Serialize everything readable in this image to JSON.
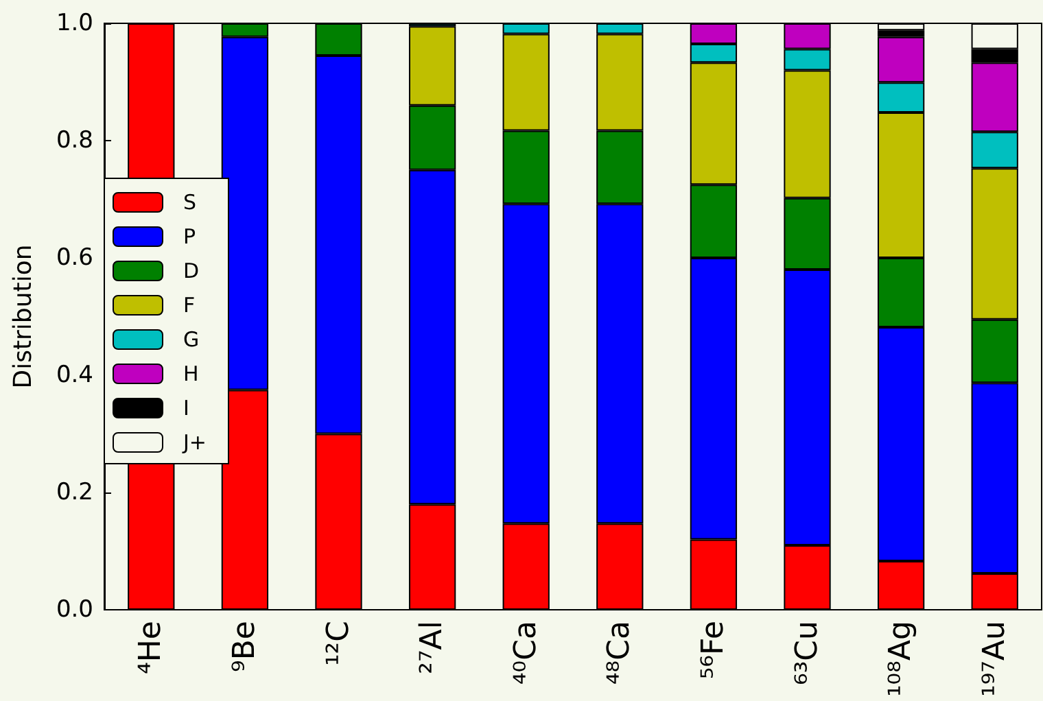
{
  "chart_data": {
    "type": "bar",
    "stacked": true,
    "ylabel": "Distribution",
    "categories": [
      "⁴He",
      "⁹Be",
      "¹²C",
      "²⁷Al",
      "⁴⁰Ca",
      "⁴⁸Ca",
      "⁵⁶Fe",
      "⁶³Cu",
      "¹⁰⁸Ag",
      "¹⁹⁷Au"
    ],
    "series": [
      {
        "name": "S",
        "color": "#ff0000",
        "values": [
          1.0,
          0.375,
          0.3,
          0.18,
          0.147,
          0.147,
          0.12,
          0.11,
          0.083,
          0.062
        ]
      },
      {
        "name": "P",
        "color": "#0000ff",
        "values": [
          0,
          0.602,
          0.645,
          0.57,
          0.545,
          0.545,
          0.48,
          0.47,
          0.399,
          0.325
        ]
      },
      {
        "name": "D",
        "color": "#008000",
        "values": [
          0,
          0.023,
          0.055,
          0.11,
          0.125,
          0.125,
          0.125,
          0.122,
          0.118,
          0.108
        ]
      },
      {
        "name": "F",
        "color": "#bfbf00",
        "values": [
          0,
          0,
          0,
          0.135,
          0.165,
          0.165,
          0.208,
          0.218,
          0.248,
          0.258
        ]
      },
      {
        "name": "G",
        "color": "#00bfbf",
        "values": [
          0,
          0,
          0,
          0.005,
          0.018,
          0.018,
          0.032,
          0.036,
          0.051,
          0.062
        ]
      },
      {
        "name": "H",
        "color": "#bf00bf",
        "values": [
          0,
          0,
          0,
          0,
          0,
          0,
          0.035,
          0.044,
          0.078,
          0.118
        ]
      },
      {
        "name": "I",
        "color": "#000000",
        "values": [
          0,
          0,
          0,
          0,
          0,
          0,
          0,
          0,
          0.011,
          0.023
        ]
      },
      {
        "name": "J+",
        "color": "#f5f8ec",
        "values": [
          0,
          0,
          0,
          0,
          0,
          0,
          0,
          0,
          0.012,
          0.044
        ]
      }
    ],
    "ylim": [
      0,
      1
    ],
    "yticks": [
      {
        "value": 0,
        "label": "0.0"
      },
      {
        "value": 0.2,
        "label": "0.2"
      },
      {
        "value": 0.4,
        "label": "0.4"
      },
      {
        "value": 0.6,
        "label": "0.6"
      },
      {
        "value": 0.8,
        "label": "0.8"
      },
      {
        "value": 1,
        "label": "1.0"
      }
    ],
    "grid": false,
    "legend": "left"
  }
}
